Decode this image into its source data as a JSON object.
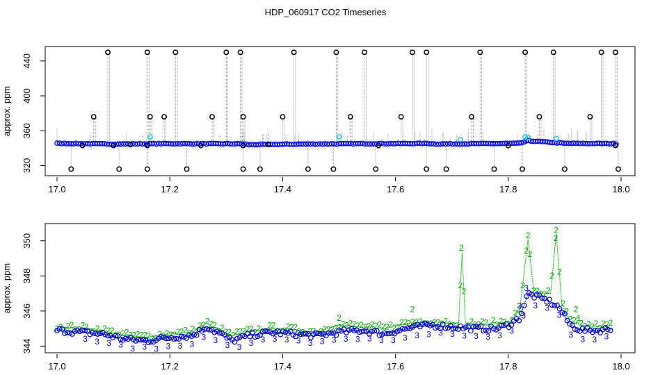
{
  "title": "HDP_060917  CO2 Timeseries",
  "colors": {
    "frame": "#000000",
    "spike": "#9a9a9a",
    "blue": "#0000ff",
    "cyan": "#22c5e0",
    "black": "#000000",
    "green": "#00aa00",
    "navy": "#0000cc"
  },
  "chart_data": [
    {
      "type": "scatter",
      "title": "",
      "xlabel": "",
      "ylabel": "approx. ppm",
      "xlim": [
        17.0,
        18.0
      ],
      "ylim": [
        310,
        455
      ],
      "x_ticks": [
        17.0,
        17.2,
        17.4,
        17.6,
        17.8,
        18.0
      ],
      "x_tick_labels": [
        "17.0",
        "17.2",
        "17.4",
        "17.6",
        "17.8",
        "18.0"
      ],
      "y_ticks": [
        320,
        360,
        400,
        440
      ],
      "y_tick_labels": [
        "320",
        "360",
        "400",
        "440"
      ],
      "baseline": [
        [
          17.0,
          345.5
        ],
        [
          17.1,
          344.8
        ],
        [
          17.2,
          345.2
        ],
        [
          17.33,
          345.0
        ],
        [
          17.34,
          344.0
        ],
        [
          17.45,
          344.8
        ],
        [
          17.55,
          345.2
        ],
        [
          17.66,
          345.4
        ],
        [
          17.67,
          344.8
        ],
        [
          17.82,
          345.5
        ],
        [
          17.835,
          348.5
        ],
        [
          17.9,
          345.5
        ],
        [
          17.99,
          345.2
        ]
      ],
      "spike_x": [
        17.065,
        17.09,
        17.16,
        17.165,
        17.19,
        17.21,
        17.275,
        17.3,
        17.325,
        17.33,
        17.4,
        17.42,
        17.495,
        17.52,
        17.545,
        17.61,
        17.63,
        17.655,
        17.735,
        17.75,
        17.83,
        17.855,
        17.88,
        17.945,
        17.965,
        17.99
      ],
      "spike_y": [
        376,
        450,
        450,
        376,
        376,
        450,
        376,
        450,
        450,
        376,
        376,
        450,
        450,
        376,
        450,
        376,
        450,
        450,
        376,
        450,
        450,
        376,
        450,
        376,
        450,
        450
      ],
      "low_x": [
        17.025,
        17.11,
        17.16,
        17.23,
        17.33,
        17.36,
        17.445,
        17.49,
        17.565,
        17.655,
        17.69,
        17.775,
        17.825,
        17.9,
        17.995
      ],
      "low_y": [
        316,
        316,
        316,
        316,
        316,
        316,
        316,
        316,
        316,
        316,
        316,
        316,
        316,
        316,
        316
      ],
      "mid_x": [
        17.045,
        17.1,
        17.13,
        17.16,
        17.255,
        17.33,
        17.375,
        17.57,
        17.8,
        17.99
      ],
      "mid_y": [
        343,
        343,
        344,
        343,
        343,
        343,
        344,
        343,
        343,
        343
      ],
      "cyan_x": [
        17.165,
        17.5,
        17.715,
        17.83,
        17.835,
        17.885
      ],
      "cyan_y": [
        353,
        353,
        350,
        353,
        352,
        351
      ]
    },
    {
      "type": "scatter",
      "title": "",
      "xlabel": "",
      "ylabel": "approx. ppm",
      "xlim": [
        17.0,
        18.0
      ],
      "ylim": [
        343.7,
        350.9
      ],
      "x_ticks": [
        17.0,
        17.2,
        17.4,
        17.6,
        17.8,
        18.0
      ],
      "x_tick_labels": [
        "17.0",
        "17.2",
        "17.4",
        "17.6",
        "17.8",
        "18.0"
      ],
      "y_ticks": [
        344,
        346,
        348,
        350
      ],
      "y_tick_labels": [
        "344",
        "346",
        "348",
        "350"
      ],
      "marker_2": "2",
      "marker_3": "3",
      "marker_1": "1",
      "blue_curve": [
        [
          17.0,
          344.9
        ],
        [
          17.04,
          344.8
        ],
        [
          17.08,
          344.7
        ],
        [
          17.12,
          344.4
        ],
        [
          17.16,
          344.3
        ],
        [
          17.2,
          344.5
        ],
        [
          17.24,
          344.6
        ],
        [
          17.265,
          345.1
        ],
        [
          17.29,
          344.7
        ],
        [
          17.31,
          344.3
        ],
        [
          17.34,
          344.6
        ],
        [
          17.38,
          344.8
        ],
        [
          17.42,
          344.7
        ],
        [
          17.46,
          344.6
        ],
        [
          17.5,
          344.8
        ],
        [
          17.54,
          344.9
        ],
        [
          17.58,
          344.7
        ],
        [
          17.62,
          345.0
        ],
        [
          17.66,
          345.2
        ],
        [
          17.7,
          345.1
        ],
        [
          17.74,
          345.0
        ],
        [
          17.78,
          345.0
        ],
        [
          17.8,
          345.2
        ],
        [
          17.82,
          345.6
        ],
        [
          17.835,
          347.0
        ],
        [
          17.85,
          346.8
        ],
        [
          17.87,
          346.6
        ],
        [
          17.89,
          346.2
        ],
        [
          17.91,
          345.2
        ],
        [
          17.93,
          344.9
        ],
        [
          17.96,
          344.9
        ],
        [
          17.985,
          345.0
        ]
      ],
      "green_curve": [
        [
          17.0,
          345.1
        ],
        [
          17.04,
          345.0
        ],
        [
          17.08,
          344.9
        ],
        [
          17.12,
          344.6
        ],
        [
          17.16,
          344.5
        ],
        [
          17.2,
          344.7
        ],
        [
          17.24,
          344.8
        ],
        [
          17.265,
          345.3
        ],
        [
          17.29,
          344.9
        ],
        [
          17.31,
          344.6
        ],
        [
          17.34,
          344.8
        ],
        [
          17.38,
          345.0
        ],
        [
          17.42,
          344.9
        ],
        [
          17.46,
          344.8
        ],
        [
          17.5,
          345.2
        ],
        [
          17.54,
          345.1
        ],
        [
          17.58,
          345.0
        ],
        [
          17.62,
          345.3
        ],
        [
          17.66,
          345.4
        ],
        [
          17.7,
          345.3
        ],
        [
          17.712,
          345.3
        ],
        [
          17.718,
          349.3
        ],
        [
          17.724,
          345.3
        ],
        [
          17.76,
          345.2
        ],
        [
          17.8,
          345.4
        ],
        [
          17.82,
          346.0
        ],
        [
          17.835,
          350.1
        ],
        [
          17.845,
          347.2
        ],
        [
          17.86,
          347.0
        ],
        [
          17.875,
          347.0
        ],
        [
          17.885,
          350.4
        ],
        [
          17.895,
          346.4
        ],
        [
          17.91,
          345.4
        ],
        [
          17.93,
          345.2
        ],
        [
          17.96,
          345.1
        ],
        [
          17.985,
          345.2
        ]
      ],
      "green_labels_x": [
        17.717,
        17.835,
        17.885,
        17.63,
        17.5,
        17.92
      ],
      "green_labels_y": [
        349.6,
        350.3,
        350.6,
        346.1,
        345.6,
        346.1
      ]
    }
  ]
}
